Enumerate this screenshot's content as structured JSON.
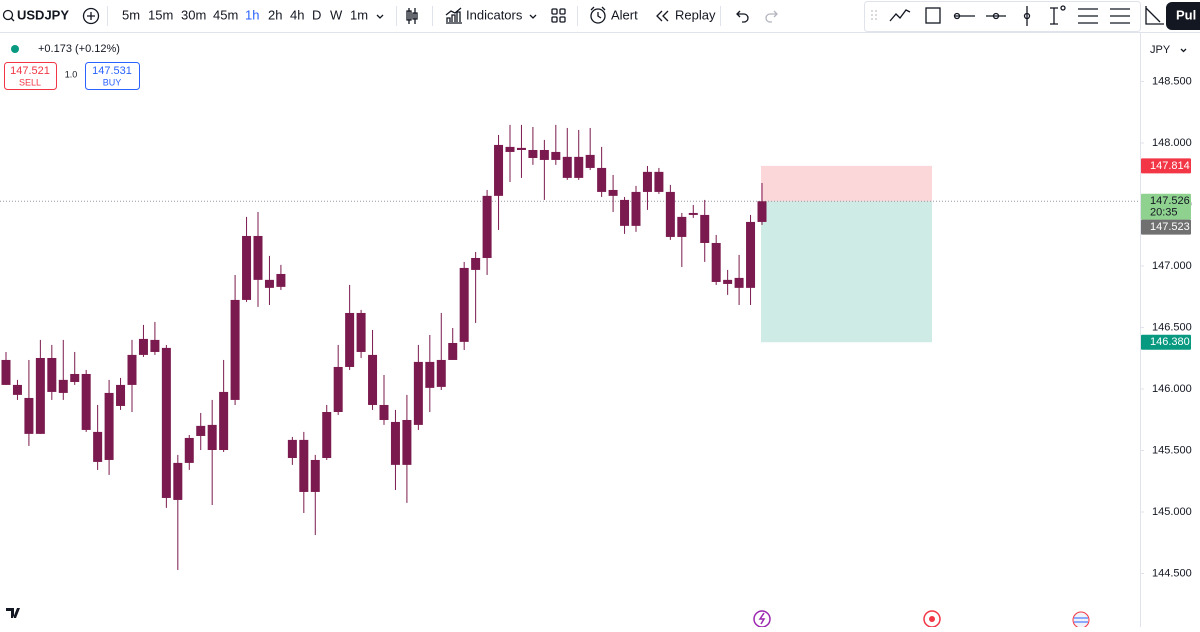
{
  "toolbar": {
    "symbol": "USDJPY",
    "intervals": [
      "5m",
      "15m",
      "30m",
      "45m",
      "1h",
      "2h",
      "4h",
      "D",
      "W",
      "1m"
    ],
    "active_interval": 4,
    "indicators": "Indicators",
    "alert": "Alert",
    "replay": "Replay",
    "publish": "Pul"
  },
  "legend": {
    "change": "+0.173 (+0.12%)",
    "sell_price": "147.521",
    "sell": "SELL",
    "quantity": "1.0",
    "buy_price": "147.531",
    "buy": "BUY"
  },
  "chart_data": {
    "type": "candlestick",
    "currency": "JPY",
    "color": "#7b1a4e",
    "ylim": [
      144.065,
      148.894
    ],
    "yticks": [
      {
        "value": 148.5,
        "label": "148.500"
      },
      {
        "value": 148,
        "label": "148.000"
      },
      {
        "value": 147.5,
        "label": "147.500"
      },
      {
        "value": 147,
        "label": "147.000"
      },
      {
        "value": 146.5,
        "label": "146.500"
      },
      {
        "value": 146,
        "label": "146.000"
      },
      {
        "value": 145.5,
        "label": "145.500"
      },
      {
        "value": 145,
        "label": "145.000"
      },
      {
        "value": 144.5,
        "label": "144.500"
      }
    ],
    "open": [
      146.236,
      146.033,
      145.927,
      146.252,
      146.252,
      146.074,
      146.122,
      146.122,
      145.651,
      145.968,
      146.033,
      146.277,
      146.407,
      146.399,
      146.334,
      145.399,
      145.602,
      145.7,
      145.708,
      145.976,
      146.724,
      147.244,
      147.244,
      146.887,
      146.935,
      145.586,
      145.586,
      145.423,
      145.813,
      146.179,
      146.618,
      146.618,
      146.277,
      145.87,
      145.732,
      145.748,
      146.22,
      146.22,
      146.236,
      146.374,
      146.984,
      147.065,
      147.57,
      147.984,
      147.968,
      147.96,
      147.943,
      147.943,
      147.927,
      147.887,
      147.887,
      147.903,
      147.797,
      147.618,
      147.537,
      147.602,
      147.765,
      147.765,
      147.602,
      147.399,
      147.431,
      147.415,
      147.187,
      146.887,
      146.903,
      147.358,
      147.358
    ],
    "high": [
      146.301,
      146.074,
      146.236,
      146.399,
      146.358,
      146.399,
      146.301,
      146.155,
      145.87,
      146.074,
      146.09,
      146.399,
      146.521,
      146.545,
      146.358,
      145.464,
      145.626,
      145.805,
      145.911,
      146.236,
      146.927,
      147.399,
      147.439,
      147.082,
      147.009,
      145.61,
      145.651,
      145.464,
      145.87,
      146.358,
      146.846,
      146.643,
      146.48,
      146.114,
      145.83,
      145.952,
      146.358,
      146.439,
      146.618,
      146.496,
      147.033,
      147.114,
      147.618,
      148.065,
      148.147,
      148.147,
      148.13,
      148.025,
      148.147,
      148.122,
      148.106,
      148.122,
      147.968,
      147.74,
      147.561,
      147.651,
      147.813,
      147.797,
      147.659,
      147.431,
      147.496,
      147.537,
      147.252,
      146.968,
      147.09,
      147.415,
      147.675
    ],
    "low": [
      146.033,
      145.911,
      145.537,
      145.635,
      145.911,
      145.911,
      146.033,
      145.651,
      145.342,
      145.301,
      145.83,
      145.813,
      146.261,
      146.277,
      145.033,
      144.529,
      145.342,
      145.504,
      145.057,
      145.488,
      145.87,
      146.708,
      146.667,
      146.683,
      146.805,
      145.383,
      144.992,
      144.813,
      145.423,
      145.789,
      146.155,
      146.252,
      145.83,
      145.708,
      145.179,
      145.074,
      145.667,
      145.813,
      145.992,
      146.236,
      146.317,
      146.537,
      146.927,
      147.293,
      147.683,
      147.716,
      147.822,
      147.537,
      147.822,
      147.7,
      147.7,
      147.781,
      147.561,
      147.439,
      147.261,
      147.277,
      147.456,
      147.586,
      147.212,
      146.992,
      147.391,
      147.033,
      146.846,
      146.765,
      146.683,
      146.683,
      147.334
    ],
    "close": [
      146.033,
      145.952,
      145.635,
      145.635,
      145.976,
      145.968,
      146.057,
      145.667,
      145.407,
      145.423,
      145.862,
      146.033,
      146.277,
      146.301,
      145.114,
      145.098,
      145.399,
      145.618,
      145.504,
      145.504,
      145.911,
      146.724,
      146.887,
      146.822,
      146.83,
      145.439,
      145.163,
      145.163,
      145.439,
      145.813,
      146.179,
      146.301,
      145.87,
      145.748,
      145.383,
      145.383,
      145.708,
      146.009,
      146.017,
      146.236,
      146.383,
      146.968,
      147.065,
      147.57,
      147.927,
      147.943,
      147.878,
      147.862,
      147.862,
      147.716,
      147.716,
      147.797,
      147.602,
      147.57,
      147.326,
      147.326,
      147.602,
      147.602,
      147.236,
      147.236,
      147.415,
      147.187,
      146.87,
      146.854,
      146.822,
      146.822,
      147.526
    ],
    "position": {
      "entry": 147.526,
      "stop": 147.814,
      "target": 146.38
    },
    "price_tags": [
      {
        "value": 147.814,
        "label": "147.814",
        "color": "#f23645"
      },
      {
        "value": 147.526,
        "label": "147.526",
        "time": "20:35",
        "color": "#8fd18f"
      },
      {
        "value": 147.523,
        "label": "147.523",
        "color": "#707070"
      },
      {
        "value": 146.38,
        "label": "146.380",
        "color": "#089981"
      }
    ]
  }
}
